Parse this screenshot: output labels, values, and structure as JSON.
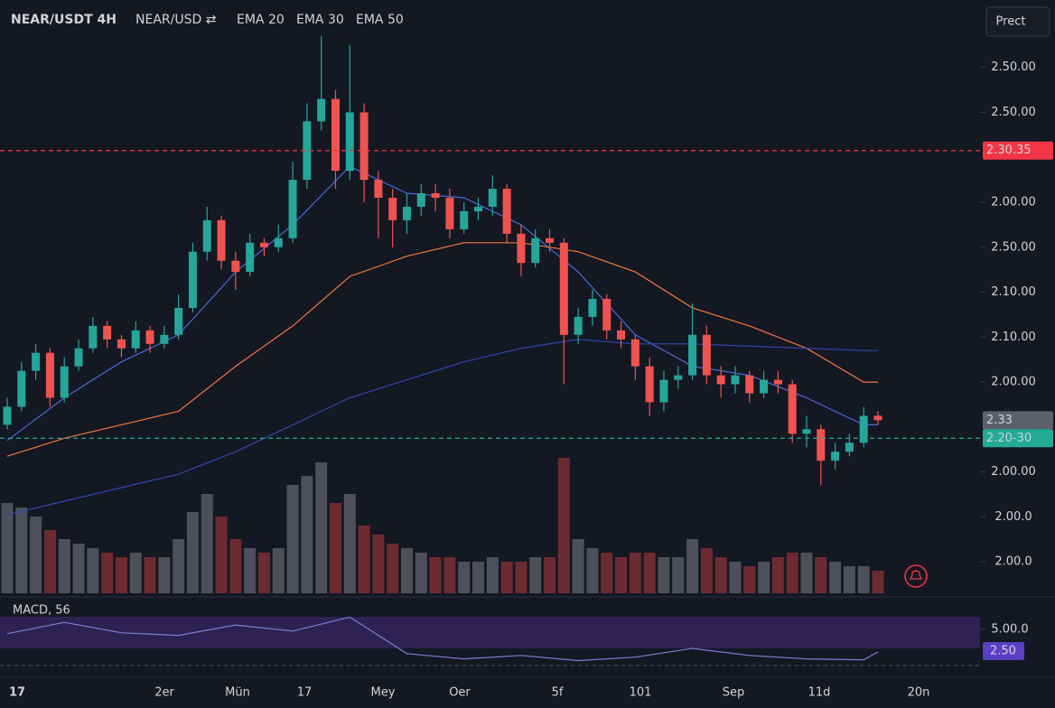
{
  "chart_data": {
    "type": "candlestick",
    "header": {
      "symbol": "NEAR/USDT 4H",
      "pair": "NEAR/USD ⇄"
    },
    "button": "Prect",
    "colors": {
      "up": "#26a69a",
      "down": "#ef5350",
      "volume_up": "#4d505a",
      "volume_down": "#6c2b31"
    },
    "ylim": [
      0.26,
      2.9
    ],
    "yticks": [
      {
        "value": 2.6,
        "label": "2.50.00"
      },
      {
        "value": 2.4,
        "label": "2.50.00"
      },
      {
        "value": 2.0,
        "label": "2.00.00"
      },
      {
        "value": 1.8,
        "label": "2.50.00"
      },
      {
        "value": 1.6,
        "label": "2.10.00"
      },
      {
        "value": 1.4,
        "label": "2.10.00"
      },
      {
        "value": 1.2,
        "label": "2.00.00"
      },
      {
        "value": 0.8,
        "label": "2.00.00"
      },
      {
        "value": 0.6,
        "label": "2.00.0"
      },
      {
        "value": 0.4,
        "label": "2.00.0"
      }
    ],
    "price_lines": [
      {
        "value": 2.23,
        "label": "2.30.35",
        "color": "#f23645",
        "dashed": true
      },
      {
        "value": 1.03,
        "label": "2.33",
        "color": "#5d606b",
        "dashed": false
      },
      {
        "value": 0.95,
        "label": "2.20-30",
        "color": "#22ab94",
        "dashed": true
      }
    ],
    "candles": [
      [
        1.01,
        1.13,
        0.99,
        1.09
      ],
      [
        1.09,
        1.29,
        1.07,
        1.25
      ],
      [
        1.25,
        1.37,
        1.21,
        1.33
      ],
      [
        1.33,
        1.35,
        1.09,
        1.13
      ],
      [
        1.13,
        1.31,
        1.11,
        1.27
      ],
      [
        1.27,
        1.39,
        1.25,
        1.35
      ],
      [
        1.35,
        1.49,
        1.33,
        1.45
      ],
      [
        1.45,
        1.47,
        1.35,
        1.39
      ],
      [
        1.39,
        1.41,
        1.31,
        1.35
      ],
      [
        1.35,
        1.47,
        1.33,
        1.43
      ],
      [
        1.43,
        1.45,
        1.33,
        1.37
      ],
      [
        1.37,
        1.45,
        1.35,
        1.41
      ],
      [
        1.41,
        1.59,
        1.39,
        1.53
      ],
      [
        1.53,
        1.82,
        1.51,
        1.78
      ],
      [
        1.78,
        1.98,
        1.74,
        1.92
      ],
      [
        1.92,
        1.94,
        1.7,
        1.74
      ],
      [
        1.74,
        1.78,
        1.61,
        1.69
      ],
      [
        1.69,
        1.86,
        1.67,
        1.82
      ],
      [
        1.82,
        1.84,
        1.76,
        1.8
      ],
      [
        1.8,
        1.9,
        1.78,
        1.84
      ],
      [
        1.84,
        2.18,
        1.82,
        2.1
      ],
      [
        2.1,
        2.44,
        2.06,
        2.36
      ],
      [
        2.36,
        2.74,
        2.32,
        2.46
      ],
      [
        2.46,
        2.5,
        2.06,
        2.14
      ],
      [
        2.14,
        2.7,
        2.1,
        2.4
      ],
      [
        2.4,
        2.44,
        2.0,
        2.1
      ],
      [
        2.1,
        2.14,
        1.84,
        2.02
      ],
      [
        2.02,
        2.06,
        1.8,
        1.92
      ],
      [
        1.92,
        2.04,
        1.86,
        1.98
      ],
      [
        1.98,
        2.08,
        1.94,
        2.04
      ],
      [
        2.04,
        2.08,
        1.96,
        2.02
      ],
      [
        2.02,
        2.06,
        1.84,
        1.88
      ],
      [
        1.88,
        2.0,
        1.86,
        1.96
      ],
      [
        1.96,
        2.02,
        1.92,
        1.98
      ],
      [
        1.98,
        2.12,
        1.94,
        2.06
      ],
      [
        2.06,
        2.08,
        1.82,
        1.86
      ],
      [
        1.86,
        1.9,
        1.67,
        1.73
      ],
      [
        1.73,
        1.88,
        1.71,
        1.84
      ],
      [
        1.84,
        1.88,
        1.78,
        1.82
      ],
      [
        1.82,
        1.84,
        1.19,
        1.41
      ],
      [
        1.41,
        1.53,
        1.37,
        1.49
      ],
      [
        1.49,
        1.61,
        1.45,
        1.57
      ],
      [
        1.57,
        1.59,
        1.39,
        1.43
      ],
      [
        1.43,
        1.47,
        1.35,
        1.39
      ],
      [
        1.39,
        1.41,
        1.21,
        1.27
      ],
      [
        1.27,
        1.31,
        1.05,
        1.11
      ],
      [
        1.11,
        1.25,
        1.07,
        1.21
      ],
      [
        1.21,
        1.27,
        1.17,
        1.23
      ],
      [
        1.23,
        1.55,
        1.21,
        1.41
      ],
      [
        1.41,
        1.45,
        1.19,
        1.23
      ],
      [
        1.23,
        1.27,
        1.13,
        1.19
      ],
      [
        1.19,
        1.27,
        1.15,
        1.23
      ],
      [
        1.23,
        1.25,
        1.11,
        1.15
      ],
      [
        1.15,
        1.25,
        1.13,
        1.21
      ],
      [
        1.21,
        1.25,
        1.15,
        1.19
      ],
      [
        1.19,
        1.21,
        0.93,
        0.97
      ],
      [
        0.97,
        1.05,
        0.91,
        0.99
      ],
      [
        0.99,
        1.01,
        0.74,
        0.85
      ],
      [
        0.85,
        0.93,
        0.81,
        0.89
      ],
      [
        0.89,
        0.97,
        0.87,
        0.93
      ],
      [
        0.93,
        1.09,
        0.91,
        1.05
      ],
      [
        1.05,
        1.07,
        1.01,
        1.03
      ]
    ],
    "volume": [
      100,
      95,
      85,
      70,
      60,
      55,
      50,
      45,
      40,
      45,
      40,
      40,
      60,
      90,
      110,
      85,
      60,
      50,
      45,
      50,
      120,
      130,
      145,
      100,
      110,
      75,
      65,
      55,
      50,
      45,
      40,
      40,
      35,
      35,
      40,
      35,
      35,
      40,
      40,
      150,
      60,
      50,
      45,
      40,
      45,
      45,
      40,
      40,
      60,
      50,
      40,
      35,
      30,
      35,
      40,
      45,
      45,
      40,
      35,
      30,
      30,
      25
    ],
    "series": [
      {
        "name": "EMA 20",
        "color": "#4a68d8",
        "label_color": "#26a69a",
        "x": [
          0,
          4,
          8,
          12,
          16,
          20,
          24,
          28,
          32,
          36,
          40,
          44,
          48,
          52,
          56,
          60,
          61
        ],
        "values": [
          0.94,
          1.13,
          1.29,
          1.41,
          1.69,
          1.9,
          2.16,
          2.04,
          2.02,
          1.9,
          1.69,
          1.41,
          1.27,
          1.23,
          1.13,
          1.01,
          1.01
        ]
      },
      {
        "name": "EMA 30",
        "color": "#f0783c",
        "label_color": "#ef5350",
        "x": [
          0,
          4,
          8,
          12,
          16,
          20,
          24,
          28,
          32,
          36,
          40,
          44,
          48,
          52,
          56,
          60,
          61
        ],
        "values": [
          0.87,
          0.95,
          1.01,
          1.07,
          1.27,
          1.45,
          1.67,
          1.76,
          1.82,
          1.82,
          1.78,
          1.69,
          1.53,
          1.45,
          1.35,
          1.2,
          1.2
        ]
      },
      {
        "name": "EMA 50",
        "color": "#3347b0",
        "label_color": "#4a7bf0",
        "x": [
          0,
          4,
          8,
          12,
          16,
          20,
          24,
          28,
          32,
          36,
          40,
          44,
          48,
          52,
          56,
          60,
          61
        ],
        "values": [
          0.61,
          0.67,
          0.73,
          0.79,
          0.89,
          1.01,
          1.13,
          1.21,
          1.29,
          1.35,
          1.39,
          1.37,
          1.37,
          1.36,
          1.35,
          1.34,
          1.34
        ]
      }
    ],
    "macd": {
      "title": "MACD, 56",
      "color": "#7b7fd6",
      "ylim": [
        0,
        8
      ],
      "yticks": [
        {
          "value": 5,
          "label": "5.00.0"
        }
      ],
      "tag": {
        "value": 2.5,
        "label": "2.50"
      },
      "x": [
        0,
        4,
        8,
        12,
        16,
        20,
        24,
        28,
        32,
        36,
        40,
        44,
        48,
        52,
        56,
        60,
        61
      ],
      "values": [
        4.5,
        5.8,
        4.6,
        4.3,
        5.5,
        4.8,
        6.4,
        2.2,
        1.6,
        2.0,
        1.4,
        1.8,
        2.8,
        2.0,
        1.6,
        1.5,
        2.4
      ]
    },
    "time_labels": [
      "17",
      "2er",
      "Mün",
      "17",
      "Mey",
      "Oer",
      "5f",
      "101",
      "Sep",
      "11d",
      "20n"
    ]
  }
}
